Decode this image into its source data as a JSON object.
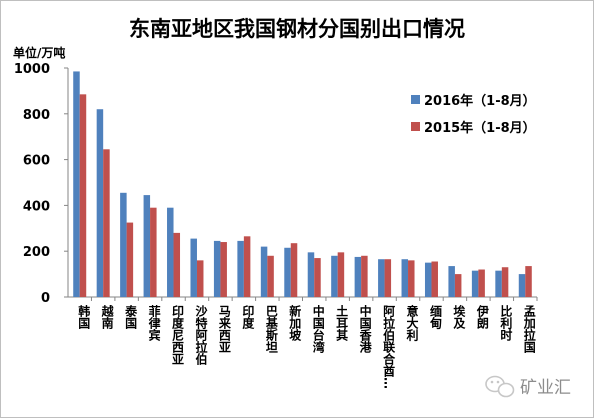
{
  "chart_data": {
    "type": "bar",
    "title": "东南亚地区我国钢材分国别出口情况",
    "ylabel": "单位/万吨",
    "ylim": [
      0,
      1000
    ],
    "yticks": [
      0,
      200,
      400,
      600,
      800,
      1000
    ],
    "grid": false,
    "legend_position": "right",
    "categories": [
      "韩国",
      "越南",
      "泰国",
      "菲律宾",
      "印度尼西亚",
      "沙特阿拉伯",
      "马来西亚",
      "印度",
      "巴基斯坦",
      "新加坡",
      "中国台湾",
      "土耳其",
      "中国香港",
      "阿拉伯联合酋…",
      "意大利",
      "缅甸",
      "埃及",
      "伊朗",
      "比利时",
      "孟加拉国"
    ],
    "series": [
      {
        "name": "2016年（1-8月）",
        "color": "#4f81bd",
        "values": [
          985,
          820,
          455,
          445,
          390,
          255,
          245,
          245,
          220,
          215,
          195,
          180,
          175,
          165,
          165,
          150,
          135,
          115,
          115,
          100
        ]
      },
      {
        "name": "2015年（1-8月）",
        "color": "#c0504d",
        "values": [
          885,
          645,
          325,
          390,
          280,
          160,
          240,
          265,
          180,
          235,
          170,
          195,
          180,
          165,
          160,
          155,
          100,
          120,
          130,
          135
        ]
      }
    ]
  },
  "watermark": {
    "text": "矿业汇",
    "icon": "wechat-icon"
  }
}
